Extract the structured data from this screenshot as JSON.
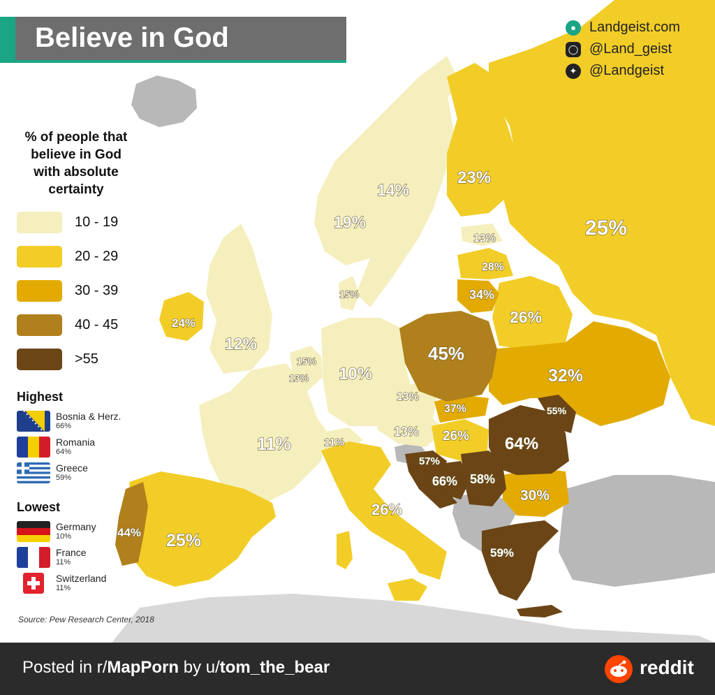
{
  "map": {
    "title": "Believe in God",
    "brand": {
      "website": "Landgeist.com",
      "instagram": "@Land_geist",
      "twitter": "@Landgeist"
    },
    "legend": {
      "title_lines": [
        "% of people that",
        "believe in God",
        "with absolute",
        "certainty"
      ],
      "bins": [
        {
          "label": "10 - 19",
          "color": "#f5efbe"
        },
        {
          "label": "20 - 29",
          "color": "#f2cd27"
        },
        {
          "label": "30 - 39",
          "color": "#e3ab02"
        },
        {
          "label": "40 - 45",
          "color": "#b0801c"
        },
        {
          "label": ">55",
          "color": "#6b4516"
        }
      ]
    },
    "highest": {
      "heading": "Highest",
      "items": [
        {
          "name": "Bosnia & Herz.",
          "value": "66%"
        },
        {
          "name": "Romania",
          "value": "64%"
        },
        {
          "name": "Greece",
          "value": "59%"
        }
      ]
    },
    "lowest": {
      "heading": "Lowest",
      "items": [
        {
          "name": "Germany",
          "value": "10%"
        },
        {
          "name": "France",
          "value": "11%"
        },
        {
          "name": "Switzerland",
          "value": "11%"
        }
      ]
    },
    "source": "Source: Pew Research Center, 2018",
    "regions": {
      "russia": "25%",
      "finland": "23%",
      "sweden": "14%",
      "norway": "19%",
      "estonia": "13%",
      "latvia": "28%",
      "lithuania": "34%",
      "belarus": "26%",
      "denmark": "15%",
      "ireland": "24%",
      "uk": "12%",
      "netherlands": "15%",
      "belgium": "13%",
      "germany": "10%",
      "poland": "45%",
      "ukraine": "32%",
      "czechia": "13%",
      "slovakia": "37%",
      "austria": "13%",
      "hungary": "26%",
      "switzerland": "11%",
      "france": "11%",
      "moldova": "55%",
      "romania": "64%",
      "croatia": "57%",
      "bosnia": "66%",
      "serbia": "58%",
      "bulgaria": "30%",
      "italy": "26%",
      "portugal": "44%",
      "spain": "25%",
      "greece": "59%"
    }
  },
  "footer": {
    "posted_in": "Posted in r/",
    "subreddit": "MapPorn",
    "by": " by u/",
    "user": "tom_the_bear",
    "reddit": "reddit"
  }
}
